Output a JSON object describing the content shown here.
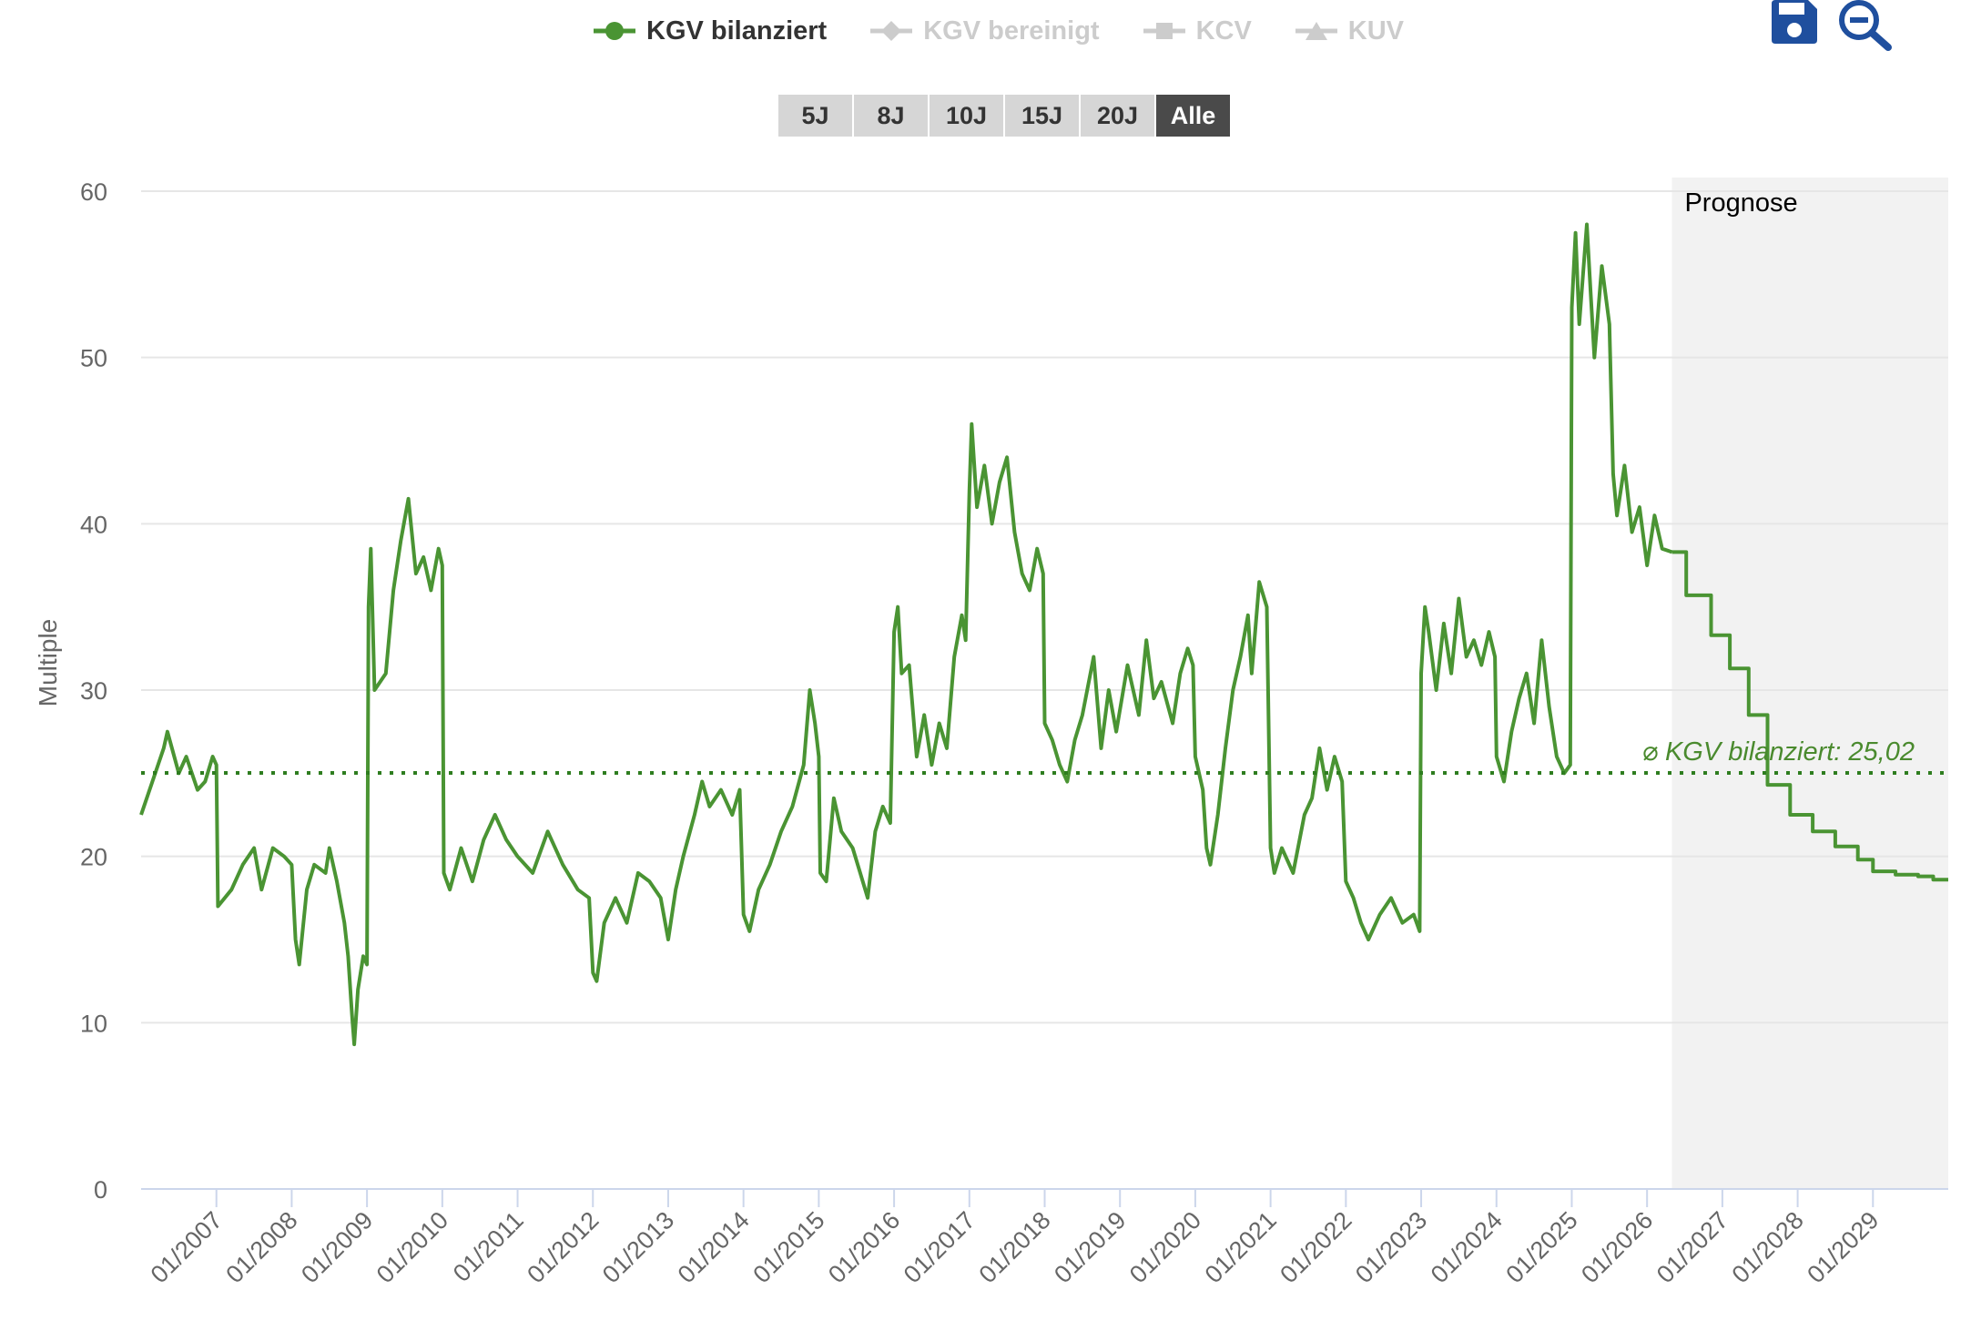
{
  "legend": [
    {
      "label": "KGV bilanziert",
      "active": true,
      "icon": "circle-line-icon",
      "color": "#4a9433"
    },
    {
      "label": "KGV bereinigt",
      "active": false,
      "icon": "diamond-line-icon",
      "color": "#cccccc"
    },
    {
      "label": "KCV",
      "active": false,
      "icon": "square-line-icon",
      "color": "#cccccc"
    },
    {
      "label": "KUV",
      "active": false,
      "icon": "triangle-line-icon",
      "color": "#cccccc"
    }
  ],
  "range_buttons": [
    "5J",
    "8J",
    "10J",
    "15J",
    "20J",
    "Alle"
  ],
  "range_selected": "Alle",
  "toolbar": {
    "save_icon": "save-icon",
    "zoom_icon": "zoom-out-icon"
  },
  "chart_data": {
    "type": "line",
    "ylabel": "Multiple",
    "ylim": [
      0,
      60
    ],
    "yticks": [
      0,
      10,
      20,
      30,
      40,
      50,
      60
    ],
    "xlim": [
      2006.0,
      2030.0
    ],
    "xticks": [
      "01/2007",
      "01/2008",
      "01/2009",
      "01/2010",
      "01/2011",
      "01/2012",
      "01/2013",
      "01/2014",
      "01/2015",
      "01/2016",
      "01/2017",
      "01/2018",
      "01/2019",
      "01/2020",
      "01/2021",
      "01/2022",
      "01/2023",
      "01/2024",
      "01/2025",
      "01/2026",
      "01/2027",
      "01/2028",
      "01/2029"
    ],
    "grid": true,
    "forecast_label": "Prognose",
    "forecast_start": 2026.33,
    "average": {
      "label": "⌀ KGV bilanziert: 25,02",
      "value": 25.02
    },
    "colors": {
      "line": "#4a9433",
      "forecast_bg": "#f2f2f2",
      "grid": "#e6e6e6"
    },
    "series": [
      {
        "name": "KGV bilanziert",
        "points": [
          [
            2006.0,
            22.5
          ],
          [
            2006.15,
            24.5
          ],
          [
            2006.3,
            26.5
          ],
          [
            2006.35,
            27.5
          ],
          [
            2006.5,
            25.0
          ],
          [
            2006.6,
            26.0
          ],
          [
            2006.75,
            24.0
          ],
          [
            2006.85,
            24.5
          ],
          [
            2006.95,
            26.0
          ],
          [
            2007.0,
            25.5
          ],
          [
            2007.02,
            17.0
          ],
          [
            2007.2,
            18.0
          ],
          [
            2007.35,
            19.5
          ],
          [
            2007.5,
            20.5
          ],
          [
            2007.6,
            18.0
          ],
          [
            2007.75,
            20.5
          ],
          [
            2007.9,
            20.0
          ],
          [
            2008.0,
            19.5
          ],
          [
            2008.05,
            15.0
          ],
          [
            2008.1,
            13.5
          ],
          [
            2008.2,
            18.0
          ],
          [
            2008.3,
            19.5
          ],
          [
            2008.45,
            19.0
          ],
          [
            2008.5,
            20.5
          ],
          [
            2008.6,
            18.5
          ],
          [
            2008.7,
            16.0
          ],
          [
            2008.75,
            14.0
          ],
          [
            2008.8,
            10.5
          ],
          [
            2008.83,
            8.7
          ],
          [
            2008.88,
            12.0
          ],
          [
            2008.95,
            14.0
          ],
          [
            2009.0,
            13.5
          ],
          [
            2009.02,
            35.0
          ],
          [
            2009.05,
            38.5
          ],
          [
            2009.1,
            30.0
          ],
          [
            2009.25,
            31.0
          ],
          [
            2009.35,
            36.0
          ],
          [
            2009.45,
            39.0
          ],
          [
            2009.55,
            41.5
          ],
          [
            2009.65,
            37.0
          ],
          [
            2009.75,
            38.0
          ],
          [
            2009.85,
            36.0
          ],
          [
            2009.95,
            38.5
          ],
          [
            2010.0,
            37.5
          ],
          [
            2010.02,
            19.0
          ],
          [
            2010.1,
            18.0
          ],
          [
            2010.25,
            20.5
          ],
          [
            2010.4,
            18.5
          ],
          [
            2010.55,
            21.0
          ],
          [
            2010.7,
            22.5
          ],
          [
            2010.85,
            21.0
          ],
          [
            2011.0,
            20.0
          ],
          [
            2011.2,
            19.0
          ],
          [
            2011.4,
            21.5
          ],
          [
            2011.6,
            19.5
          ],
          [
            2011.8,
            18.0
          ],
          [
            2011.95,
            17.5
          ],
          [
            2012.0,
            13.0
          ],
          [
            2012.05,
            12.5
          ],
          [
            2012.15,
            16.0
          ],
          [
            2012.3,
            17.5
          ],
          [
            2012.45,
            16.0
          ],
          [
            2012.6,
            19.0
          ],
          [
            2012.75,
            18.5
          ],
          [
            2012.9,
            17.5
          ],
          [
            2013.0,
            15.0
          ],
          [
            2013.1,
            18.0
          ],
          [
            2013.2,
            20.0
          ],
          [
            2013.35,
            22.5
          ],
          [
            2013.45,
            24.5
          ],
          [
            2013.55,
            23.0
          ],
          [
            2013.7,
            24.0
          ],
          [
            2013.85,
            22.5
          ],
          [
            2013.95,
            24.0
          ],
          [
            2014.0,
            16.5
          ],
          [
            2014.08,
            15.5
          ],
          [
            2014.2,
            18.0
          ],
          [
            2014.35,
            19.5
          ],
          [
            2014.5,
            21.5
          ],
          [
            2014.65,
            23.0
          ],
          [
            2014.8,
            25.5
          ],
          [
            2014.88,
            30.0
          ],
          [
            2014.95,
            28.0
          ],
          [
            2015.0,
            26.0
          ],
          [
            2015.02,
            19.0
          ],
          [
            2015.1,
            18.5
          ],
          [
            2015.2,
            23.5
          ],
          [
            2015.3,
            21.5
          ],
          [
            2015.45,
            20.5
          ],
          [
            2015.55,
            19.0
          ],
          [
            2015.65,
            17.5
          ],
          [
            2015.75,
            21.5
          ],
          [
            2015.85,
            23.0
          ],
          [
            2015.95,
            22.0
          ],
          [
            2016.0,
            33.5
          ],
          [
            2016.05,
            35.0
          ],
          [
            2016.1,
            31.0
          ],
          [
            2016.2,
            31.5
          ],
          [
            2016.3,
            26.0
          ],
          [
            2016.4,
            28.5
          ],
          [
            2016.5,
            25.5
          ],
          [
            2016.6,
            28.0
          ],
          [
            2016.7,
            26.5
          ],
          [
            2016.8,
            32.0
          ],
          [
            2016.9,
            34.5
          ],
          [
            2016.95,
            33.0
          ],
          [
            2017.0,
            42.0
          ],
          [
            2017.03,
            46.0
          ],
          [
            2017.1,
            41.0
          ],
          [
            2017.2,
            43.5
          ],
          [
            2017.3,
            40.0
          ],
          [
            2017.4,
            42.5
          ],
          [
            2017.5,
            44.0
          ],
          [
            2017.6,
            39.5
          ],
          [
            2017.7,
            37.0
          ],
          [
            2017.8,
            36.0
          ],
          [
            2017.9,
            38.5
          ],
          [
            2017.98,
            37.0
          ],
          [
            2018.0,
            28.0
          ],
          [
            2018.1,
            27.0
          ],
          [
            2018.2,
            25.5
          ],
          [
            2018.3,
            24.5
          ],
          [
            2018.4,
            27.0
          ],
          [
            2018.5,
            28.5
          ],
          [
            2018.65,
            32.0
          ],
          [
            2018.75,
            26.5
          ],
          [
            2018.85,
            30.0
          ],
          [
            2018.95,
            27.5
          ],
          [
            2019.1,
            31.5
          ],
          [
            2019.25,
            28.5
          ],
          [
            2019.35,
            33.0
          ],
          [
            2019.45,
            29.5
          ],
          [
            2019.55,
            30.5
          ],
          [
            2019.7,
            28.0
          ],
          [
            2019.8,
            31.0
          ],
          [
            2019.9,
            32.5
          ],
          [
            2019.97,
            31.5
          ],
          [
            2020.0,
            26.0
          ],
          [
            2020.1,
            24.0
          ],
          [
            2020.15,
            20.5
          ],
          [
            2020.2,
            19.5
          ],
          [
            2020.3,
            22.5
          ],
          [
            2020.4,
            26.5
          ],
          [
            2020.5,
            30.0
          ],
          [
            2020.6,
            32.0
          ],
          [
            2020.7,
            34.5
          ],
          [
            2020.75,
            31.0
          ],
          [
            2020.85,
            36.5
          ],
          [
            2020.95,
            35.0
          ],
          [
            2021.0,
            20.5
          ],
          [
            2021.05,
            19.0
          ],
          [
            2021.15,
            20.5
          ],
          [
            2021.3,
            19.0
          ],
          [
            2021.45,
            22.5
          ],
          [
            2021.55,
            23.5
          ],
          [
            2021.65,
            26.5
          ],
          [
            2021.75,
            24.0
          ],
          [
            2021.85,
            26.0
          ],
          [
            2021.95,
            24.5
          ],
          [
            2022.0,
            18.5
          ],
          [
            2022.1,
            17.5
          ],
          [
            2022.2,
            16.0
          ],
          [
            2022.3,
            15.0
          ],
          [
            2022.45,
            16.5
          ],
          [
            2022.6,
            17.5
          ],
          [
            2022.75,
            16.0
          ],
          [
            2022.9,
            16.5
          ],
          [
            2022.98,
            15.5
          ],
          [
            2023.0,
            31.0
          ],
          [
            2023.05,
            35.0
          ],
          [
            2023.1,
            33.5
          ],
          [
            2023.2,
            30.0
          ],
          [
            2023.3,
            34.0
          ],
          [
            2023.4,
            31.0
          ],
          [
            2023.5,
            35.5
          ],
          [
            2023.6,
            32.0
          ],
          [
            2023.7,
            33.0
          ],
          [
            2023.8,
            31.5
          ],
          [
            2023.9,
            33.5
          ],
          [
            2023.98,
            32.0
          ],
          [
            2024.0,
            26.0
          ],
          [
            2024.1,
            24.5
          ],
          [
            2024.2,
            27.5
          ],
          [
            2024.3,
            29.5
          ],
          [
            2024.4,
            31.0
          ],
          [
            2024.5,
            28.0
          ],
          [
            2024.6,
            33.0
          ],
          [
            2024.7,
            29.0
          ],
          [
            2024.8,
            26.0
          ],
          [
            2024.9,
            25.0
          ],
          [
            2024.98,
            25.5
          ],
          [
            2025.0,
            53.0
          ],
          [
            2025.05,
            57.5
          ],
          [
            2025.1,
            52.0
          ],
          [
            2025.2,
            58.0
          ],
          [
            2025.25,
            54.0
          ],
          [
            2025.3,
            50.0
          ],
          [
            2025.4,
            55.5
          ],
          [
            2025.5,
            52.0
          ],
          [
            2025.55,
            43.0
          ],
          [
            2025.6,
            40.5
          ],
          [
            2025.7,
            43.5
          ],
          [
            2025.8,
            39.5
          ],
          [
            2025.9,
            41.0
          ],
          [
            2026.0,
            37.5
          ],
          [
            2026.1,
            40.5
          ],
          [
            2026.2,
            38.5
          ],
          [
            2026.33,
            38.3
          ]
        ]
      },
      {
        "name": "Prognose",
        "points": [
          [
            2026.33,
            38.3
          ],
          [
            2026.52,
            35.7
          ],
          [
            2026.85,
            33.3
          ],
          [
            2027.1,
            31.3
          ],
          [
            2027.35,
            28.5
          ],
          [
            2027.6,
            24.3
          ],
          [
            2027.9,
            22.5
          ],
          [
            2028.2,
            21.5
          ],
          [
            2028.5,
            20.6
          ],
          [
            2028.8,
            19.8
          ],
          [
            2029.0,
            19.1
          ],
          [
            2029.3,
            18.9
          ],
          [
            2029.6,
            18.8
          ],
          [
            2029.8,
            18.6
          ],
          [
            2030.0,
            18.6
          ]
        ]
      }
    ]
  }
}
